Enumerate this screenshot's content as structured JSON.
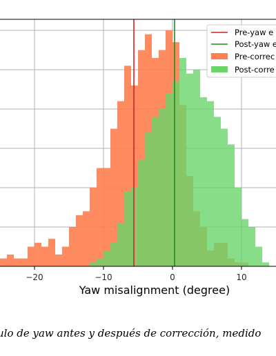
{
  "chart_data": {
    "type": "histogram",
    "xlabel": "Yaw misalignment (degree)",
    "xticks": [
      -20,
      -10,
      0,
      10
    ],
    "xlim": [
      -25,
      15
    ],
    "ylim": [
      0,
      62
    ],
    "grid": true,
    "bin_width": 1,
    "bin_start": -25,
    "series": [
      {
        "name": "Pre-correc",
        "color": "#ff7f50",
        "counts": [
          2,
          3,
          2,
          2,
          5,
          6,
          5,
          7,
          3,
          5,
          10,
          13,
          14,
          20,
          25,
          25,
          35,
          42,
          51,
          46,
          55,
          59,
          53,
          55,
          60,
          57,
          41,
          23,
          14,
          10,
          4,
          6,
          6,
          2,
          1,
          1,
          0,
          0,
          0,
          0
        ]
      },
      {
        "name": "Post-corre",
        "color": "#6ad66a",
        "counts": [
          0,
          0,
          0,
          0,
          0,
          0,
          0,
          0,
          0,
          0,
          0,
          0,
          0,
          1,
          2,
          4,
          6,
          11,
          19,
          20,
          27,
          34,
          38,
          40,
          44,
          47,
          53,
          49,
          50,
          43,
          42,
          38,
          35,
          31,
          20,
          12,
          10,
          5,
          1,
          0
        ]
      }
    ],
    "vlines": [
      {
        "name": "Pre-yaw e",
        "x": -5.6,
        "color": "#cc2222"
      },
      {
        "name": "Post-yaw e",
        "x": 0.3,
        "color": "#228b22"
      }
    ],
    "legend_position": "top-right"
  },
  "caption": "ulo de yaw antes y después de corrección, medido"
}
